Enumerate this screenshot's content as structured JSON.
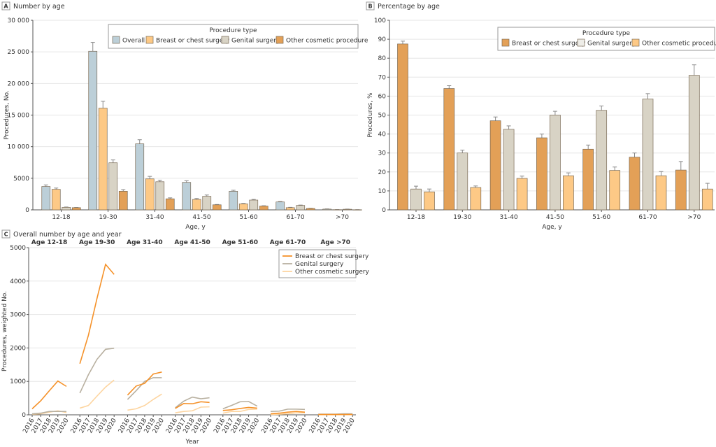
{
  "chart_data": [
    {
      "panel": "A",
      "type": "bar",
      "title": "Number by age",
      "xlabel": "Age, y",
      "ylabel": "Procedures, No.",
      "ylim": [
        0,
        30000
      ],
      "yticks": [
        "0",
        "5000",
        "10 000",
        "15 000",
        "20 000",
        "25 000",
        "30 000"
      ],
      "yticks_values": [
        0,
        5000,
        10000,
        15000,
        20000,
        25000,
        30000
      ],
      "grid": true,
      "legend": {
        "title": "Procedure type",
        "placement": "top-right"
      },
      "categories": [
        "12-18",
        "19-30",
        "31-40",
        "41-50",
        "51-60",
        "61-70",
        ">70"
      ],
      "series": [
        {
          "name": "Overall",
          "color": "#bccfd8",
          "values": [
            3700,
            25100,
            10450,
            4350,
            2950,
            1250,
            120
          ],
          "error_upper": [
            3950,
            26500,
            11100,
            4600,
            3100,
            1320,
            150
          ]
        },
        {
          "name": "Breast or chest surgery",
          "color": "#fdc986",
          "values": [
            3250,
            16100,
            4900,
            1650,
            950,
            350,
            30
          ],
          "error_upper": [
            3450,
            17200,
            5300,
            1800,
            1020,
            400,
            40
          ]
        },
        {
          "name": "Genital surgery",
          "color": "#d8d3c5",
          "values": [
            400,
            7450,
            4450,
            2150,
            1550,
            700,
            100
          ],
          "error_upper": [
            450,
            7900,
            4700,
            2350,
            1650,
            760,
            120
          ]
        },
        {
          "name": "Other cosmetic procedure",
          "color": "#e3a057",
          "values": [
            350,
            2950,
            1750,
            800,
            600,
            230,
            20
          ],
          "error_upper": [
            380,
            3200,
            1900,
            850,
            650,
            260,
            30
          ]
        }
      ]
    },
    {
      "panel": "B",
      "type": "bar",
      "title": "Percentage by age",
      "xlabel": "Age, y",
      "ylabel": "Procedures, %",
      "ylim": [
        0,
        100
      ],
      "yticks": [
        "0",
        "10",
        "20",
        "30",
        "40",
        "50",
        "60",
        "70",
        "80",
        "90",
        "100"
      ],
      "yticks_values": [
        0,
        10,
        20,
        30,
        40,
        50,
        60,
        70,
        80,
        90,
        100
      ],
      "grid": true,
      "legend": {
        "title": "Procedure type",
        "placement": "top-right"
      },
      "categories": [
        "12-18",
        "19-30",
        "31-40",
        "41-50",
        "51-60",
        "61-70",
        ">70"
      ],
      "series": [
        {
          "name": "Breast or chest surgery",
          "color": "#e3a057",
          "values": [
            87.5,
            64,
            47,
            38,
            32,
            27.8,
            21
          ],
          "error_upper": [
            89,
            65.5,
            49,
            40,
            34.2,
            30,
            25.5
          ]
        },
        {
          "name": "Genital surgery",
          "color": "#d8d3c5",
          "legend_color": "#eeede8",
          "values": [
            11,
            30,
            42.5,
            50,
            52.5,
            58.5,
            71
          ],
          "error_upper": [
            12.5,
            31.5,
            44.3,
            52,
            54.8,
            61.3,
            76.5
          ]
        },
        {
          "name": "Other cosmetic procedure",
          "color": "#fdc986",
          "values": [
            9.5,
            11.8,
            16.6,
            18,
            20.8,
            18,
            11
          ],
          "error_upper": [
            11,
            12.6,
            17.8,
            19.5,
            22.6,
            20.2,
            14
          ]
        }
      ]
    },
    {
      "panel": "C",
      "type": "line",
      "title": "Overall number by age and year",
      "xlabel": "Year",
      "ylabel": "Procedures, weighted No.",
      "ylim": [
        0,
        5000
      ],
      "yticks": [
        "0",
        "1000",
        "2000",
        "3000",
        "4000",
        "5000"
      ],
      "yticks_values": [
        0,
        1000,
        2000,
        3000,
        4000,
        5000
      ],
      "grid": true,
      "legend": {
        "placement": "top-right"
      },
      "x": [
        "2016",
        "2017",
        "2018",
        "2019",
        "2020"
      ],
      "facets": [
        {
          "title": "Age 12-18",
          "breast": [
            180,
            420,
            720,
            1010,
            850
          ],
          "genital": [
            30,
            50,
            100,
            100,
            100
          ],
          "other": [
            20,
            30,
            80,
            120,
            70
          ]
        },
        {
          "title": "Age 19-30",
          "breast": [
            1530,
            2380,
            3480,
            4500,
            4200
          ],
          "genital": [
            650,
            1200,
            1660,
            1960,
            1990
          ],
          "other": [
            200,
            280,
            560,
            830,
            1040
          ]
        },
        {
          "title": "Age 31-40",
          "breast": [
            590,
            860,
            940,
            1220,
            1280
          ],
          "genital": [
            460,
            720,
            1000,
            1110,
            1110
          ],
          "other": [
            140,
            180,
            280,
            460,
            620
          ]
        },
        {
          "title": "Age 41-50",
          "breast": [
            190,
            340,
            330,
            390,
            370
          ],
          "genital": [
            210,
            410,
            530,
            480,
            510
          ],
          "other": [
            60,
            100,
            120,
            230,
            240
          ]
        },
        {
          "title": "Age 51-60",
          "breast": [
            130,
            150,
            190,
            220,
            200
          ],
          "genital": [
            180,
            280,
            390,
            400,
            260
          ],
          "other": [
            50,
            100,
            100,
            160,
            170
          ]
        },
        {
          "title": "Age 61-70",
          "breast": [
            30,
            50,
            80,
            100,
            80
          ],
          "genital": [
            100,
            110,
            170,
            170,
            160
          ],
          "other": [
            10,
            20,
            30,
            60,
            60
          ]
        },
        {
          "title": "Age >70",
          "breast": [
            10,
            10,
            10,
            10,
            10
          ],
          "genital": [
            20,
            20,
            20,
            30,
            30
          ],
          "other": [
            5,
            5,
            5,
            5,
            5
          ]
        }
      ],
      "series": [
        {
          "key": "breast",
          "name": "Breast or chest surgery",
          "color": "#f5922a"
        },
        {
          "key": "genital",
          "name": "Genital surgery",
          "color": "#b8b0a0"
        },
        {
          "key": "other",
          "name": "Other cosmetic surgery",
          "color": "#fdd5a0"
        }
      ]
    }
  ]
}
